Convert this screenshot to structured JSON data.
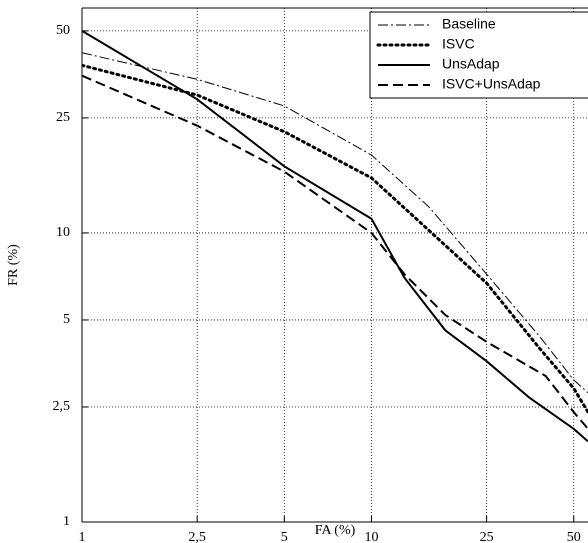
{
  "chart_data": {
    "type": "line",
    "x_label": "FA (%)",
    "y_label": "FR (%)",
    "xscale": "log",
    "yscale": "log",
    "xlim": [
      1,
      56
    ],
    "ylim": [
      1,
      60
    ],
    "xticks": [
      1,
      {
        "value": 2.5,
        "label": "2,5"
      },
      5,
      10,
      25,
      50
    ],
    "yticks": [
      1,
      {
        "value": 2.5,
        "label": "2,5"
      },
      5,
      10,
      25,
      50
    ],
    "grid": true,
    "legend": "upper right",
    "series": [
      {
        "name": "Baseline",
        "color": "#000000",
        "style": "dashdot",
        "x": [
          1,
          2.5,
          5,
          10,
          15.8,
          25,
          38,
          50,
          56
        ],
        "values": [
          42,
          34,
          27.5,
          18.6,
          12.3,
          7.2,
          4.4,
          3.1,
          2.8
        ]
      },
      {
        "name": "ISVC",
        "color": "#000000",
        "style": "dotted",
        "x": [
          1,
          2.5,
          5,
          10,
          15,
          25,
          38,
          50,
          56
        ],
        "values": [
          38,
          30,
          22.4,
          15.5,
          10.7,
          6.7,
          4.0,
          2.9,
          2.4
        ]
      },
      {
        "name": "UnsAdap",
        "color": "#000000",
        "style": "solid",
        "x": [
          1,
          2.5,
          5,
          10,
          13,
          18,
          25,
          35,
          50,
          56
        ],
        "values": [
          50,
          29,
          17,
          11.2,
          7.0,
          4.6,
          3.6,
          2.7,
          2.1,
          1.9
        ]
      },
      {
        "name": "ISVC+UnsAdap",
        "color": "#000000",
        "style": "dashed",
        "x": [
          1,
          2.5,
          5,
          10,
          13,
          18,
          25,
          40,
          50,
          56
        ],
        "values": [
          35,
          23.5,
          16.3,
          10,
          7.2,
          5.2,
          4.2,
          3.2,
          2.4,
          2.1
        ]
      }
    ]
  }
}
